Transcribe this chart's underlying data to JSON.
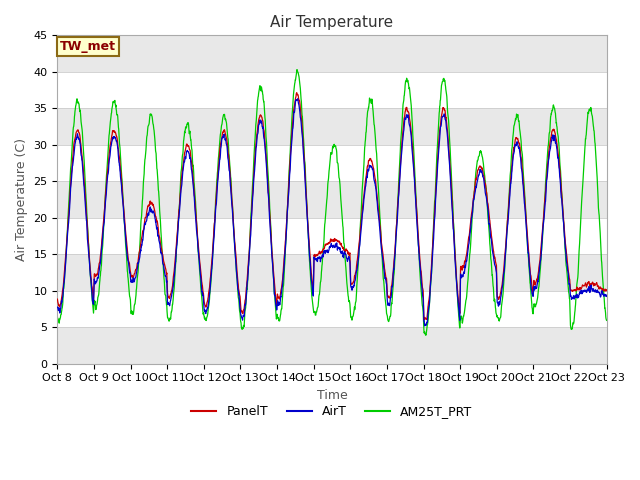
{
  "title": "Air Temperature",
  "ylabel": "Air Temperature (C)",
  "xlabel": "Time",
  "annotation": "TW_met",
  "annotation_color": "#8B0000",
  "annotation_bg": "#FFFFCC",
  "annotation_border": "#8B6914",
  "x_tick_labels": [
    "Oct 8",
    "Oct 9",
    "Oct 10",
    "Oct 11",
    "Oct 12",
    "Oct 13",
    "Oct 14",
    "Oct 15",
    "Oct 16",
    "Oct 17",
    "Oct 18",
    "Oct 19",
    "Oct 20",
    "Oct 21",
    "Oct 22",
    "Oct 23"
  ],
  "ylim": [
    0,
    45
  ],
  "yticks": [
    0,
    5,
    10,
    15,
    20,
    25,
    30,
    35,
    40,
    45
  ],
  "legend_labels": [
    "PanelT",
    "AirT",
    "AM25T_PRT"
  ],
  "line_colors": [
    "#CC0000",
    "#0000CC",
    "#00CC00"
  ],
  "fig_bg": "#FFFFFF",
  "plot_bg": "#FFFFFF",
  "band_color_light": "#FFFFFF",
  "band_color_dark": "#E8E8E8",
  "title_fontsize": 11,
  "axis_fontsize": 9,
  "tick_fontsize": 8,
  "n_days": 15,
  "points_per_day": 144,
  "panel_maxes": [
    32,
    32,
    22,
    30,
    32,
    34,
    37,
    17,
    28,
    35,
    35,
    27,
    31,
    32,
    11
  ],
  "panel_mins": [
    8,
    12,
    12,
    9,
    8,
    7,
    9,
    15,
    11,
    9,
    6,
    13,
    9,
    11,
    10
  ],
  "green_extra_max": [
    4,
    4,
    12,
    3,
    2,
    4,
    3,
    13,
    8,
    4,
    4,
    2,
    3,
    3,
    24
  ],
  "green_extra_min": [
    -2,
    -4,
    -5,
    -3,
    -2,
    -2,
    -3,
    -8,
    -5,
    -3,
    -2,
    -7,
    -3,
    -3,
    -5
  ]
}
